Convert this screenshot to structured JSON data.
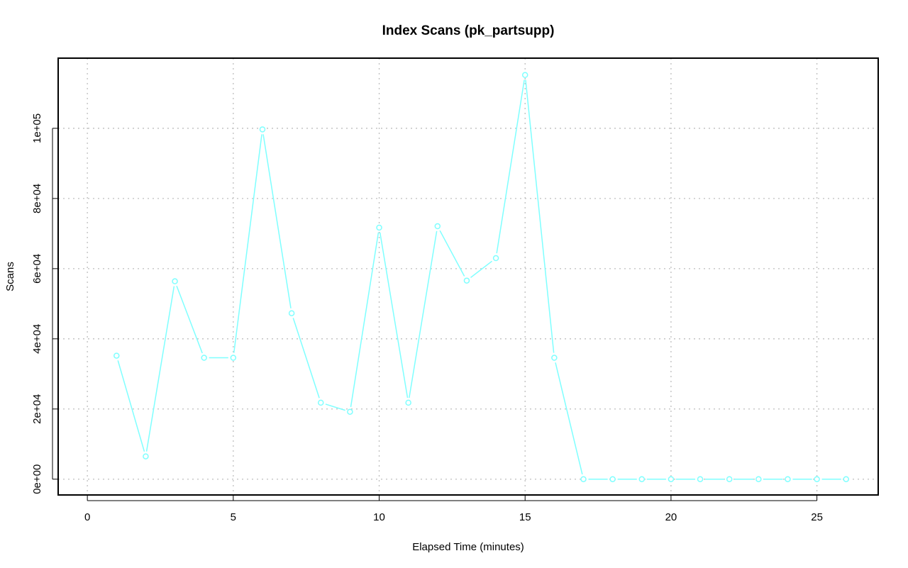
{
  "chart_data": {
    "type": "line",
    "title": "Index Scans (pk_partsupp)",
    "xlabel": "Elapsed Time (minutes)",
    "ylabel": "Scans",
    "xlim": [
      -1,
      27.1
    ],
    "ylim": [
      -4500,
      120000
    ],
    "xticks": [
      0,
      5,
      10,
      15,
      20,
      25
    ],
    "xtick_labels": [
      "0",
      "5",
      "10",
      "15",
      "20",
      "25"
    ],
    "yticks": [
      0,
      20000,
      40000,
      60000,
      80000,
      100000
    ],
    "ytick_labels": [
      "0e+00",
      "2e+04",
      "4e+04",
      "6e+04",
      "8e+04",
      "1e+05"
    ],
    "grid": true,
    "color": "#7FFFFF",
    "series": [
      {
        "x": [
          1,
          2,
          3,
          4,
          5,
          6,
          7,
          8,
          9,
          10,
          11,
          12,
          13,
          14,
          15,
          16,
          17,
          18,
          19,
          20,
          21,
          22,
          23,
          24,
          25,
          26
        ],
        "values": [
          35200,
          6500,
          56400,
          34600,
          34600,
          99700,
          47300,
          21800,
          19200,
          71700,
          21800,
          72100,
          56600,
          63000,
          115200,
          34600,
          0,
          0,
          0,
          0,
          0,
          0,
          0,
          0,
          0,
          0
        ]
      }
    ]
  }
}
